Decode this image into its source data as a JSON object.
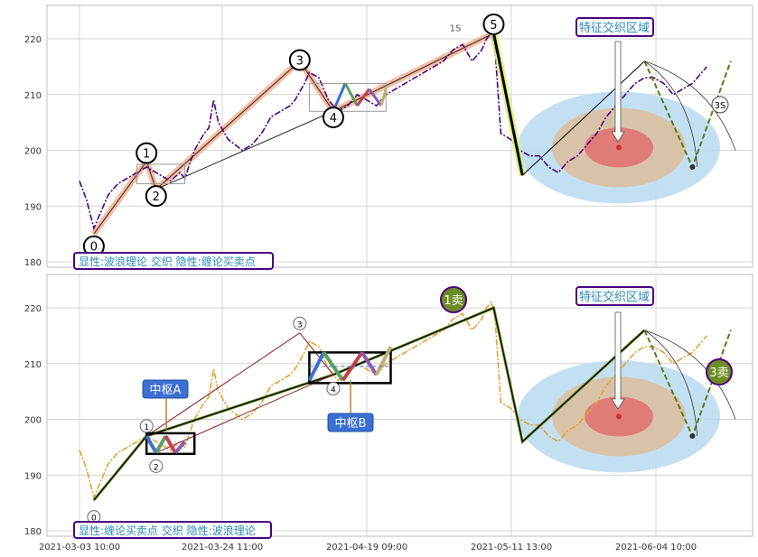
{
  "chart_data": [
    {
      "type": "line",
      "panel": "top",
      "ylim": [
        178.5,
        226
      ],
      "yticks": [
        180,
        190,
        200,
        210,
        220
      ],
      "grid": true,
      "legend_box": "显性:波浪理论 交织 隐性:缠论买卖点",
      "callout": "特征交织区域",
      "price_color": "#4b0082",
      "price": [
        [
          0,
          194.5
        ],
        [
          1.5,
          191
        ],
        [
          3,
          186
        ],
        [
          4.5,
          189
        ],
        [
          6,
          192
        ],
        [
          8,
          194
        ],
        [
          10,
          195
        ],
        [
          12,
          196
        ],
        [
          14,
          197
        ],
        [
          16,
          196
        ],
        [
          18,
          195
        ],
        [
          19,
          194.5
        ],
        [
          21,
          196
        ],
        [
          22,
          195
        ],
        [
          24,
          200
        ],
        [
          26,
          203
        ],
        [
          27,
          204
        ],
        [
          28,
          209
        ],
        [
          29,
          205
        ],
        [
          31,
          202
        ],
        [
          34,
          200
        ],
        [
          36,
          201
        ],
        [
          38,
          203
        ],
        [
          40,
          206
        ],
        [
          42,
          207
        ],
        [
          44,
          208
        ],
        [
          45,
          209
        ],
        [
          47,
          212
        ],
        [
          48,
          214
        ],
        [
          50,
          213
        ],
        [
          52,
          209
        ],
        [
          54,
          207
        ],
        [
          56,
          208
        ],
        [
          58,
          210
        ],
        [
          60,
          209
        ],
        [
          62,
          208
        ],
        [
          64,
          210
        ],
        [
          66,
          211
        ],
        [
          68,
          212
        ],
        [
          70,
          213
        ],
        [
          72,
          214
        ],
        [
          74,
          215
        ],
        [
          76,
          216
        ],
        [
          78,
          218
        ],
        [
          80,
          219
        ],
        [
          82,
          216
        ],
        [
          84,
          218
        ],
        [
          85,
          220
        ],
        [
          86,
          221
        ],
        [
          86.8,
          218
        ],
        [
          88,
          203
        ],
        [
          90,
          202
        ],
        [
          92,
          200
        ],
        [
          94,
          199
        ],
        [
          96,
          199
        ],
        [
          98,
          197
        ],
        [
          100,
          196
        ],
        [
          102,
          198
        ],
        [
          104,
          199
        ],
        [
          106,
          201
        ],
        [
          108,
          203
        ],
        [
          110,
          206
        ],
        [
          112,
          208
        ],
        [
          114,
          210
        ],
        [
          116,
          212
        ],
        [
          118,
          213
        ],
        [
          120,
          213
        ],
        [
          122,
          212
        ],
        [
          124,
          210
        ],
        [
          126,
          211
        ],
        [
          128,
          212
        ],
        [
          130,
          214
        ],
        [
          131,
          215
        ]
      ],
      "wave_points": [
        {
          "label": "0",
          "x": 3,
          "y": 185
        },
        {
          "label": "1",
          "x": 14,
          "y": 198
        },
        {
          "label": "2",
          "x": 16,
          "y": 193
        },
        {
          "label": "3",
          "x": 46,
          "y": 216
        },
        {
          "label": "4",
          "x": 53,
          "y": 207
        },
        {
          "label": "5",
          "x": 86.5,
          "y": 221
        },
        {
          "label": "3S",
          "x": 138,
          "y": 208
        }
      ],
      "wave_labels": [
        "0",
        "1",
        "2",
        "3",
        "4",
        "5",
        "3S"
      ]
    },
    {
      "type": "line",
      "panel": "bottom",
      "ylim": [
        178.5,
        226
      ],
      "yticks": [
        180,
        190,
        200,
        210,
        220
      ],
      "grid": true,
      "legend_box": "显性:缠论买卖点 交织 隐性:波浪理论",
      "callout": "特征交织区域",
      "price_color": "#e8a030",
      "pivot_labels": [
        "中枢A",
        "中枢B"
      ],
      "sell_labels": [
        "1卖",
        "3卖"
      ],
      "wave_labels": [
        "0",
        "1",
        "2",
        "3",
        "4"
      ]
    }
  ],
  "xaxis": {
    "tick_labels": [
      "2021-03-03 10:00",
      "2021-03-24 11:00",
      "2021-04-19 09:00",
      "2021-05-11 13:00",
      "2021-06-04 10:00"
    ]
  },
  "colors": {
    "zone_outer": "#b8daf0",
    "zone_mid": "#dcc0a0",
    "zone_inner": "#e07070",
    "callout_border": "#4b0082",
    "callout_text": "#2a8abf",
    "pivot_bg": "#3b6fd4",
    "sell_bg": "#6b8e23"
  }
}
